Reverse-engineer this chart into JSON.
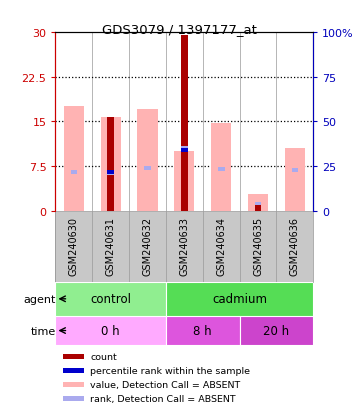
{
  "title": "GDS3079 / 1397177_at",
  "samples": [
    "GSM240630",
    "GSM240631",
    "GSM240632",
    "GSM240633",
    "GSM240634",
    "GSM240635",
    "GSM240636"
  ],
  "pink_bar_heights": [
    17.5,
    15.8,
    17.0,
    10.0,
    14.8,
    2.8,
    10.5
  ],
  "red_bar_heights": [
    0.0,
    15.8,
    0.0,
    29.5,
    0.0,
    1.5,
    0.0
  ],
  "blue_dot_y": [
    null,
    6.5,
    null,
    10.2,
    null,
    null,
    null
  ],
  "blue_square_y": [
    6.5,
    6.2,
    7.2,
    10.5,
    7.0,
    1.2,
    6.8
  ],
  "left_yticks": [
    0,
    7.5,
    15,
    22.5,
    30
  ],
  "right_yticks": [
    0,
    25,
    50,
    75,
    100
  ],
  "right_yticklabels": [
    "0",
    "25",
    "50",
    "75",
    "100%"
  ],
  "agent_labels": [
    {
      "label": "control",
      "start": 0,
      "end": 3,
      "color": "#90EE90"
    },
    {
      "label": "cadmium",
      "start": 3,
      "end": 7,
      "color": "#55DD55"
    }
  ],
  "time_labels": [
    {
      "label": "0 h",
      "start": 0,
      "end": 3,
      "color": "#FFAAFF"
    },
    {
      "label": "8 h",
      "start": 3,
      "end": 5,
      "color": "#DD55DD"
    },
    {
      "label": "20 h",
      "start": 5,
      "end": 7,
      "color": "#CC44CC"
    }
  ],
  "pink_color": "#FFB3B3",
  "red_color": "#AA0000",
  "blue_dot_color": "#0000CC",
  "blue_sq_color": "#AAAAEE",
  "left_axis_color": "#CC0000",
  "right_axis_color": "#0000BB",
  "sample_bg_color": "#C8C8C8",
  "legend_items": [
    {
      "color": "#AA0000",
      "label": "count"
    },
    {
      "color": "#0000CC",
      "label": "percentile rank within the sample"
    },
    {
      "color": "#FFB3B3",
      "label": "value, Detection Call = ABSENT"
    },
    {
      "color": "#AAAAEE",
      "label": "rank, Detection Call = ABSENT"
    }
  ]
}
